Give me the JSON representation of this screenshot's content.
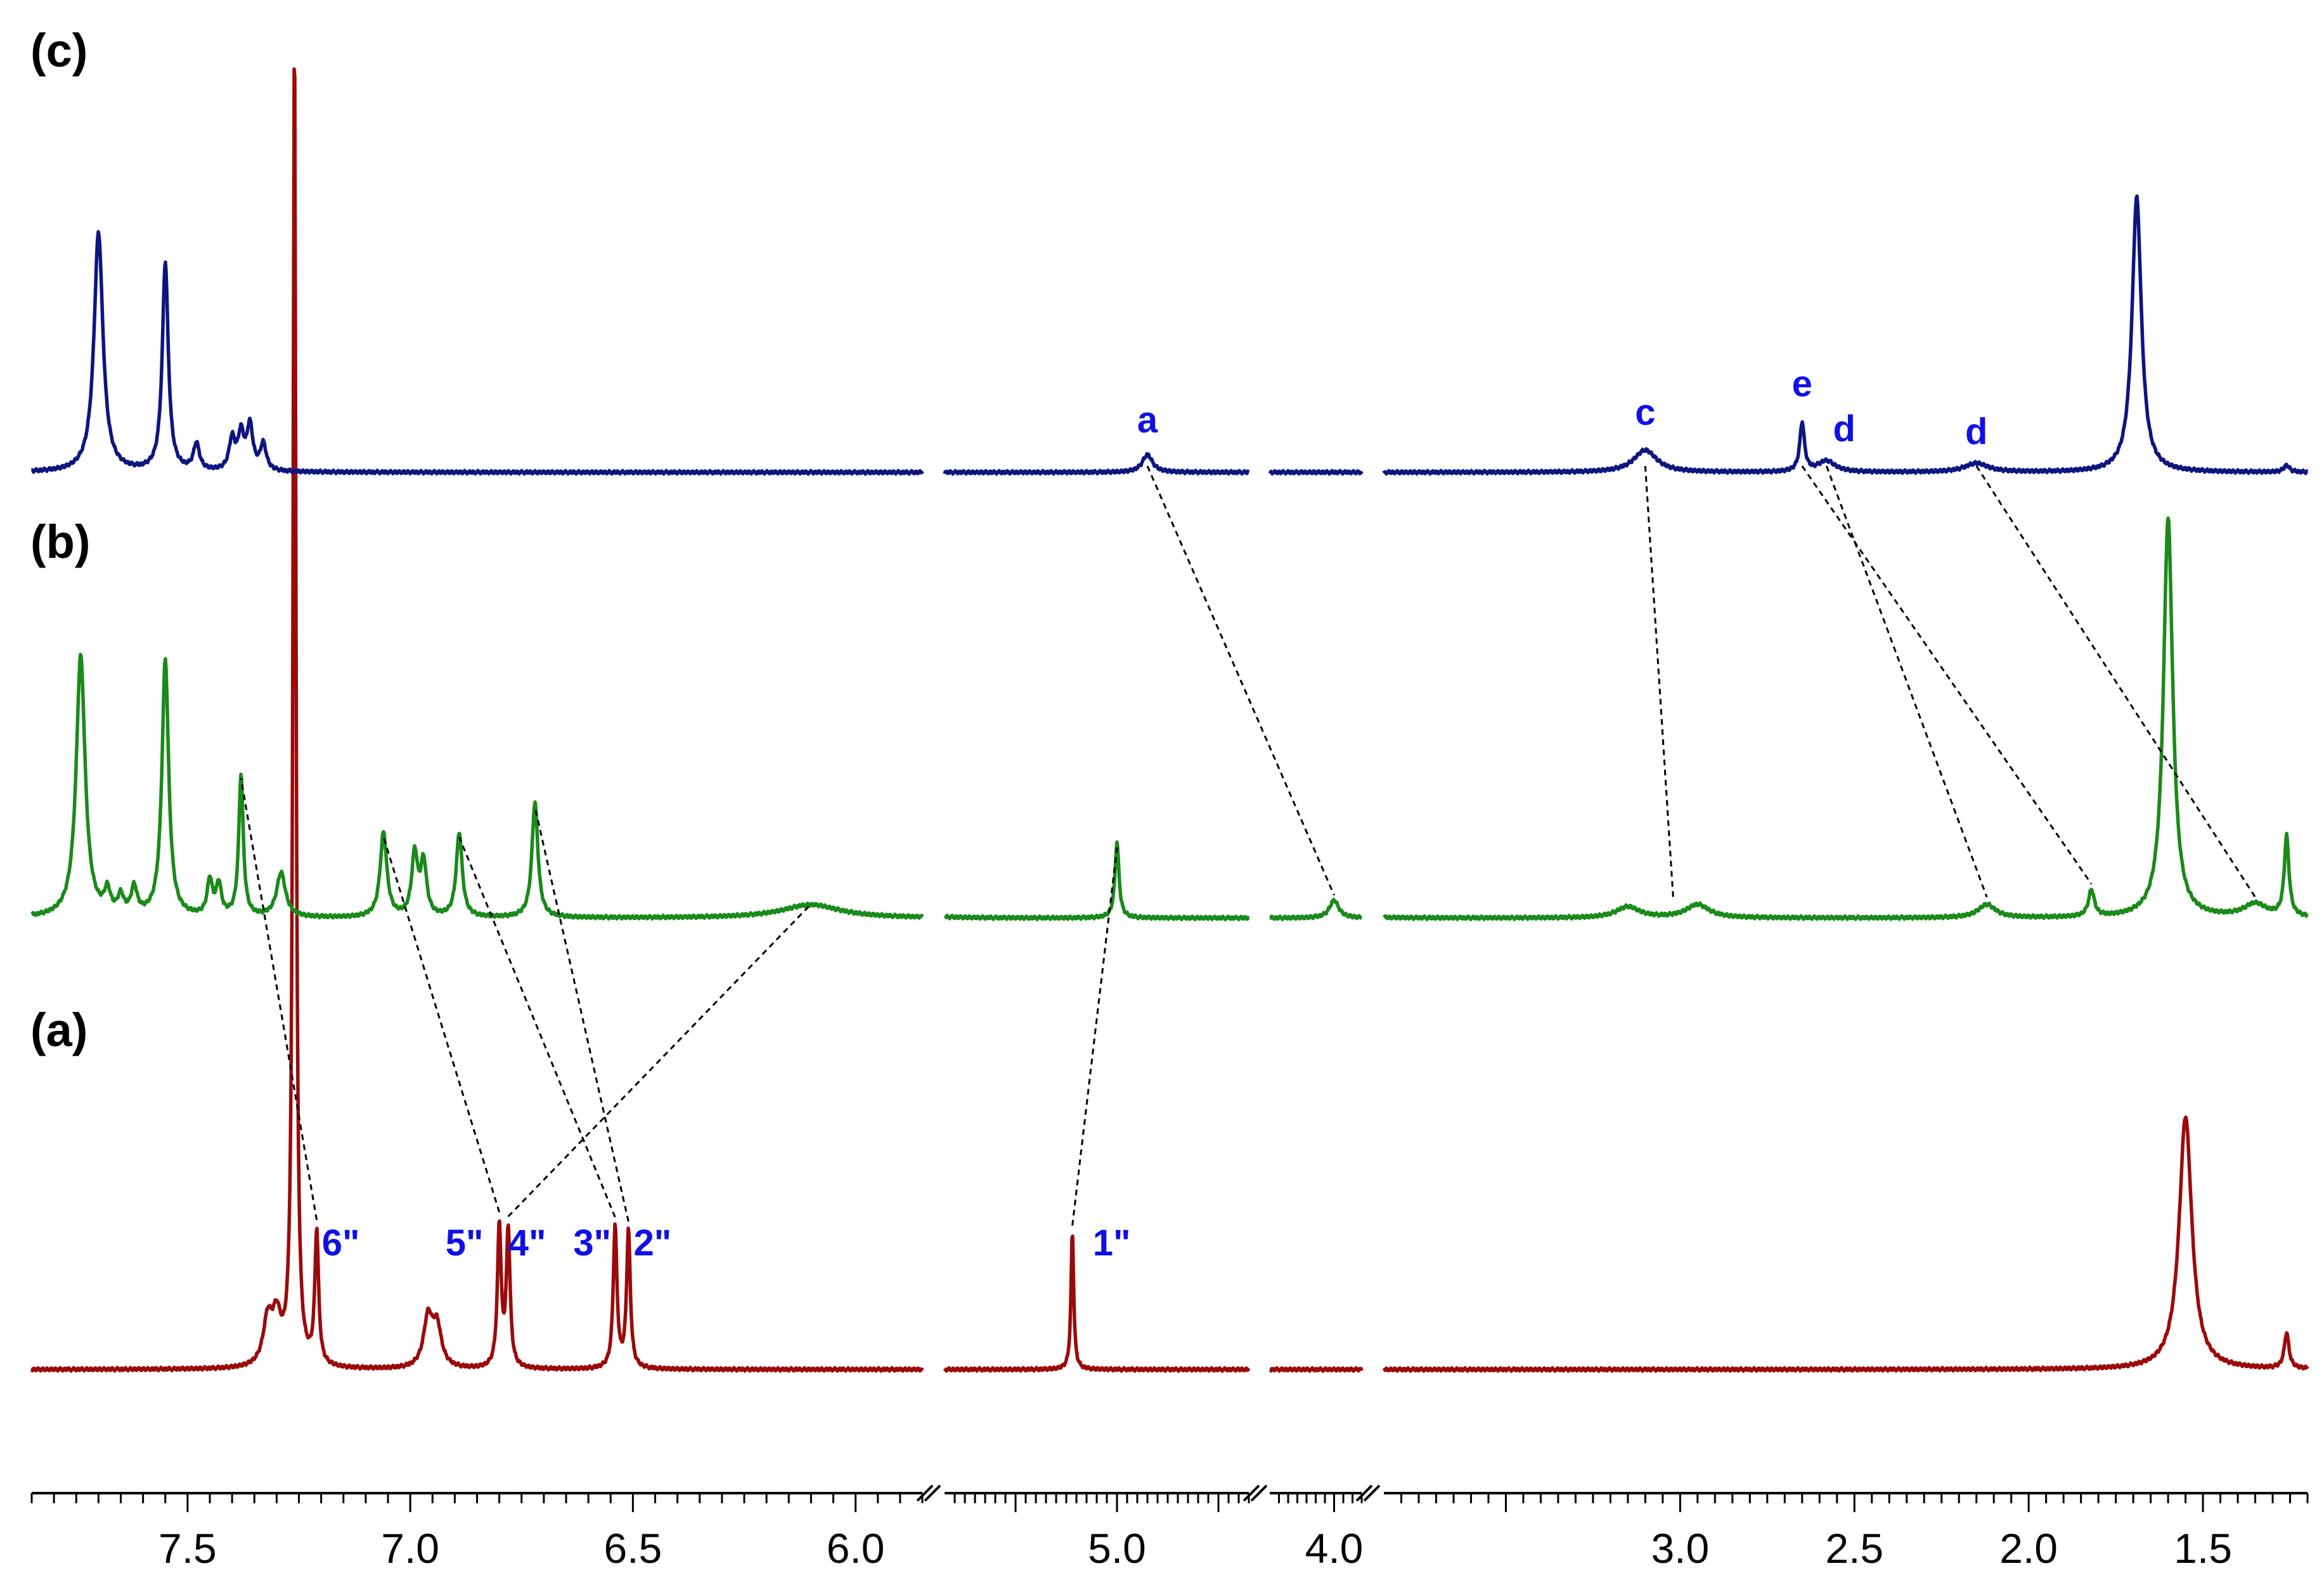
{
  "chart_data": {
    "type": "line",
    "title": "",
    "xlabel": "",
    "ylabel": "",
    "x_direction": "descending",
    "axis_segments": [
      {
        "from": 7.85,
        "to": 5.85
      },
      {
        "from": 5.85,
        "to": 4.35
      },
      {
        "from": 4.35,
        "to": 3.85
      },
      {
        "from": 3.85,
        "to": 1.2
      }
    ],
    "x_tick_labels": [
      "7.5",
      "7.0",
      "6.5",
      "6.0",
      "5.0",
      "4.0",
      "3.0",
      "2.5",
      "2.0",
      "1.5"
    ],
    "x_tick_values": [
      7.5,
      7.0,
      6.5,
      6.0,
      5.0,
      4.0,
      3.0,
      2.5,
      2.0,
      1.5
    ],
    "axis_break_marks": true,
    "grid": false,
    "colors": {
      "a": "#9b0a0a",
      "b": "#1a8a1a",
      "c": "#0d1580",
      "label": "#1010e6",
      "guide": "#000000"
    },
    "series": [
      {
        "name": "(a)",
        "peaks": [
          {
            "x": 7.32,
            "h": 0.1,
            "w": 0.012
          },
          {
            "x": 7.3,
            "h": 0.1,
            "w": 0.012
          },
          {
            "x": 7.26,
            "h": 3.0,
            "w": 0.004
          },
          {
            "x": 7.21,
            "h": 0.3,
            "w": 0.005
          },
          {
            "x": 6.96,
            "h": 0.11,
            "w": 0.012
          },
          {
            "x": 6.94,
            "h": 0.09,
            "w": 0.012
          },
          {
            "x": 6.8,
            "h": 0.32,
            "w": 0.005
          },
          {
            "x": 6.78,
            "h": 0.31,
            "w": 0.005
          },
          {
            "x": 6.54,
            "h": 0.32,
            "w": 0.005
          },
          {
            "x": 6.51,
            "h": 0.31,
            "w": 0.005
          },
          {
            "x": 5.22,
            "h": 0.31,
            "w": 0.008
          },
          {
            "x": 1.55,
            "h": 0.57,
            "w": 0.022
          },
          {
            "x": 1.26,
            "h": 0.08,
            "w": 0.008
          }
        ]
      },
      {
        "name": "(b)",
        "peaks": [
          {
            "x": 7.74,
            "h": 0.59,
            "w": 0.012
          },
          {
            "x": 7.68,
            "h": 0.05,
            "w": 0.008
          },
          {
            "x": 7.65,
            "h": 0.04,
            "w": 0.008
          },
          {
            "x": 7.62,
            "h": 0.06,
            "w": 0.008
          },
          {
            "x": 7.55,
            "h": 0.58,
            "w": 0.009
          },
          {
            "x": 7.45,
            "h": 0.08,
            "w": 0.007
          },
          {
            "x": 7.43,
            "h": 0.07,
            "w": 0.007
          },
          {
            "x": 7.38,
            "h": 0.32,
            "w": 0.006
          },
          {
            "x": 7.29,
            "h": 0.1,
            "w": 0.012
          },
          {
            "x": 7.06,
            "h": 0.19,
            "w": 0.009
          },
          {
            "x": 6.99,
            "h": 0.14,
            "w": 0.008
          },
          {
            "x": 6.97,
            "h": 0.12,
            "w": 0.008
          },
          {
            "x": 6.89,
            "h": 0.19,
            "w": 0.008
          },
          {
            "x": 6.72,
            "h": 0.26,
            "w": 0.008
          },
          {
            "x": 6.1,
            "h": 0.03,
            "w": 0.08
          },
          {
            "x": 5.0,
            "h": 0.17,
            "w": 0.012
          },
          {
            "x": 4.0,
            "h": 0.04,
            "w": 0.03
          },
          {
            "x": 3.15,
            "h": 0.025,
            "w": 0.04
          },
          {
            "x": 2.95,
            "h": 0.03,
            "w": 0.04
          },
          {
            "x": 2.12,
            "h": 0.03,
            "w": 0.03
          },
          {
            "x": 1.82,
            "h": 0.06,
            "w": 0.01
          },
          {
            "x": 1.6,
            "h": 0.9,
            "w": 0.016
          },
          {
            "x": 1.35,
            "h": 0.03,
            "w": 0.04
          },
          {
            "x": 1.26,
            "h": 0.18,
            "w": 0.008
          }
        ]
      },
      {
        "name": "(c)",
        "peaks": [
          {
            "x": 7.7,
            "h": 0.54,
            "w": 0.012
          },
          {
            "x": 7.55,
            "h": 0.47,
            "w": 0.008
          },
          {
            "x": 7.48,
            "h": 0.06,
            "w": 0.008
          },
          {
            "x": 7.4,
            "h": 0.07,
            "w": 0.008
          },
          {
            "x": 7.38,
            "h": 0.08,
            "w": 0.008
          },
          {
            "x": 7.36,
            "h": 0.1,
            "w": 0.008
          },
          {
            "x": 7.33,
            "h": 0.06,
            "w": 0.008
          },
          {
            "x": 4.85,
            "h": 0.04,
            "w": 0.03
          },
          {
            "x": 3.1,
            "h": 0.05,
            "w": 0.04
          },
          {
            "x": 2.65,
            "h": 0.11,
            "w": 0.008
          },
          {
            "x": 2.58,
            "h": 0.025,
            "w": 0.03
          },
          {
            "x": 2.15,
            "h": 0.02,
            "w": 0.04
          },
          {
            "x": 1.69,
            "h": 0.62,
            "w": 0.016
          },
          {
            "x": 1.26,
            "h": 0.015,
            "w": 0.01
          }
        ]
      }
    ],
    "peak_labels": [
      {
        "text": "6\"",
        "series": "(a)",
        "x": 7.21
      },
      {
        "text": "5\"",
        "series": "(a)",
        "x": 6.8
      },
      {
        "text": "4\"",
        "series": "(a)",
        "x": 6.78
      },
      {
        "text": "3\"",
        "series": "(a)",
        "x": 6.54
      },
      {
        "text": "2\"",
        "series": "(a)",
        "x": 6.51
      },
      {
        "text": "1\"",
        "series": "(a)",
        "x": 5.22
      },
      {
        "text": "a",
        "series": "(c)",
        "x": 4.85
      },
      {
        "text": "c",
        "series": "(c)",
        "x": 3.1
      },
      {
        "text": "e",
        "series": "(c)",
        "x": 2.65
      },
      {
        "text": "d",
        "series": "(c)",
        "x": 2.58
      },
      {
        "text": "d",
        "series": "(c)",
        "x": 2.15
      }
    ],
    "correlations": [
      {
        "from_series": "(a)",
        "from_x": 7.21,
        "to_series": "(b)",
        "to_x": 7.38
      },
      {
        "from_series": "(a)",
        "from_x": 6.8,
        "to_series": "(b)",
        "to_x": 7.06
      },
      {
        "from_series": "(a)",
        "from_x": 6.78,
        "to_series": "(b)",
        "to_x": 6.1
      },
      {
        "from_series": "(a)",
        "from_x": 6.54,
        "to_series": "(b)",
        "to_x": 6.89
      },
      {
        "from_series": "(a)",
        "from_x": 6.51,
        "to_series": "(b)",
        "to_x": 6.72
      },
      {
        "from_series": "(a)",
        "from_x": 5.22,
        "to_series": "(b)",
        "to_x": 5.0
      },
      {
        "from_series": "(c)",
        "from_x": 4.85,
        "to_series": "(b)",
        "to_x": 4.0
      },
      {
        "from_series": "(c)",
        "from_x": 3.1,
        "to_series": "(b)",
        "to_x": 3.02
      },
      {
        "from_series": "(c)",
        "from_x": 2.65,
        "to_series": "(b)",
        "to_x": 1.82
      },
      {
        "from_series": "(c)",
        "from_x": 2.58,
        "to_series": "(b)",
        "to_x": 2.12
      },
      {
        "from_series": "(c)",
        "from_x": 2.15,
        "to_series": "(b)",
        "to_x": 1.35
      }
    ]
  }
}
